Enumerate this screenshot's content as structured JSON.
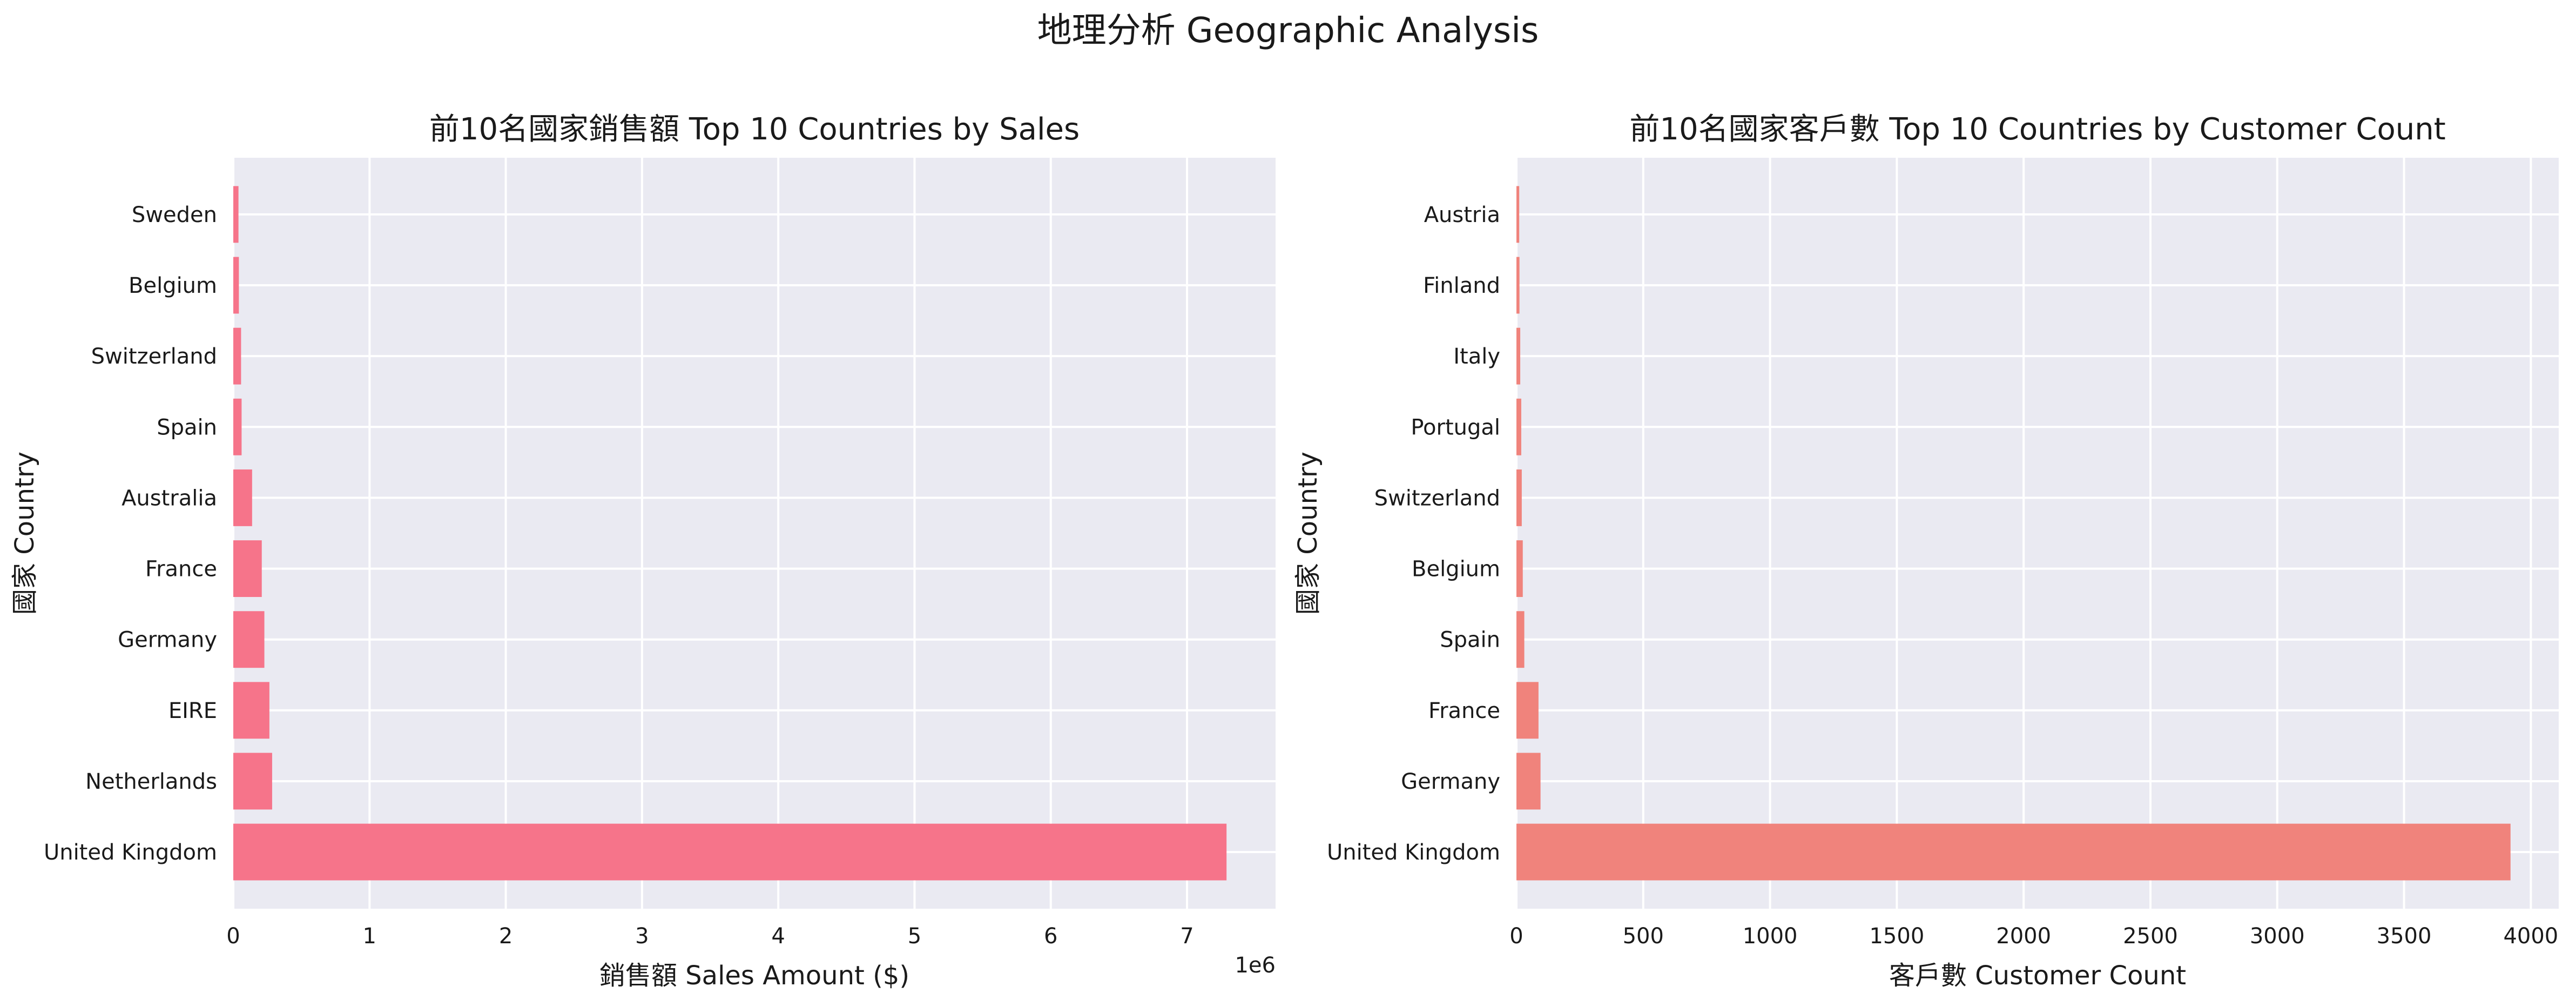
{
  "figure": {
    "suptitle": "地理分析 Geographic Analysis"
  },
  "chart_data": [
    {
      "type": "bar",
      "orientation": "horizontal",
      "title": "前10名國家銷售額 Top 10 Countries by Sales",
      "xlabel": "銷售額 Sales Amount ($)",
      "ylabel": "國家 Country",
      "x_offset_label": "1e6",
      "xlim": [
        0,
        7.65
      ],
      "xticks": [
        "0",
        "1",
        "2",
        "3",
        "4",
        "5",
        "6",
        "7"
      ],
      "categories": [
        "United Kingdom",
        "Netherlands",
        "EIRE",
        "Germany",
        "France",
        "Australia",
        "Spain",
        "Switzerland",
        "Belgium",
        "Sweden"
      ],
      "values": [
        7.29,
        0.285,
        0.265,
        0.228,
        0.209,
        0.138,
        0.061,
        0.057,
        0.041,
        0.038
      ],
      "color": "#f6748a",
      "grid": true
    },
    {
      "type": "bar",
      "orientation": "horizontal",
      "title": "前10名國家客戶數 Top 10 Countries by Customer Count",
      "xlabel": "客戶數 Customer Count",
      "ylabel": "國家 Country",
      "xlim": [
        0,
        4110
      ],
      "xticks": [
        "0",
        "500",
        "1000",
        "1500",
        "2000",
        "2500",
        "3000",
        "3500",
        "4000"
      ],
      "categories": [
        "United Kingdom",
        "Germany",
        "France",
        "Spain",
        "Belgium",
        "Switzerland",
        "Portugal",
        "Italy",
        "Finland",
        "Austria"
      ],
      "values": [
        3920,
        95,
        87,
        31,
        25,
        21,
        19,
        15,
        12,
        11
      ],
      "color": "#f0837c",
      "grid": true
    }
  ]
}
